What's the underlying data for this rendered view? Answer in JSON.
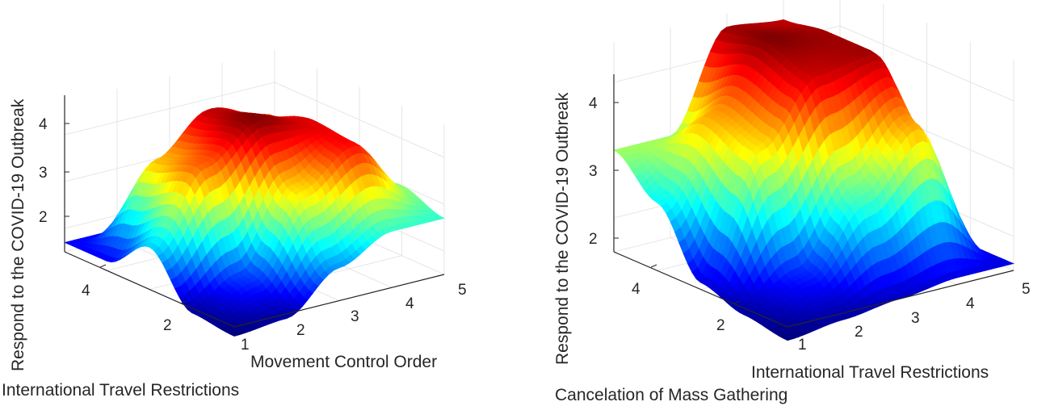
{
  "chart_data": [
    {
      "type": "surface",
      "title": "",
      "zlabel": "Respond to the COVID-19 Outbreak",
      "xlabel": "Movement Control Order",
      "ylabel": "International Travel Restrictions",
      "x_ticks": [
        "1",
        "2",
        "3",
        "4",
        "5"
      ],
      "y_ticks": [
        "2",
        "4"
      ],
      "z_ticks": [
        "2",
        "3",
        "4"
      ],
      "zlim": [
        1.5,
        4.7
      ],
      "colormap": "jet",
      "x": [
        1,
        2,
        3,
        4,
        5
      ],
      "y": [
        1,
        2,
        3,
        4,
        5
      ],
      "z": [
        [
          1.3,
          1.4,
          2.2,
          2.7,
          2.7
        ],
        [
          1.4,
          1.9,
          3.5,
          4.2,
          3.0
        ],
        [
          2.4,
          3.9,
          4.6,
          4.3,
          2.7
        ],
        [
          1.7,
          3.6,
          4.4,
          4.0,
          2.7
        ],
        [
          1.7,
          1.7,
          2.0,
          2.4,
          2.7
        ]
      ]
    },
    {
      "type": "surface",
      "title": "",
      "zlabel": "Respond to the COVID-19 Outbreak",
      "xlabel": "International Travel Restrictions",
      "ylabel": "Cancelation of Mass Gathering",
      "x_ticks": [
        "1",
        "2",
        "3",
        "4",
        "5"
      ],
      "y_ticks": [
        "2",
        "4"
      ],
      "z_ticks": [
        "2",
        "3",
        "4"
      ],
      "zlim": [
        1.5,
        4.6
      ],
      "colormap": "jet",
      "x": [
        1,
        2,
        3,
        4,
        5
      ],
      "y": [
        1,
        2,
        3,
        4,
        5
      ],
      "z": [
        [
          1.3,
          1.4,
          1.5,
          1.6,
          1.6
        ],
        [
          1.4,
          1.8,
          2.8,
          3.6,
          1.6
        ],
        [
          1.6,
          3.4,
          4.3,
          4.4,
          1.7
        ],
        [
          2.5,
          3.6,
          4.5,
          4.4,
          1.8
        ],
        [
          3.0,
          3.0,
          4.4,
          4.3,
          1.8
        ]
      ]
    }
  ]
}
